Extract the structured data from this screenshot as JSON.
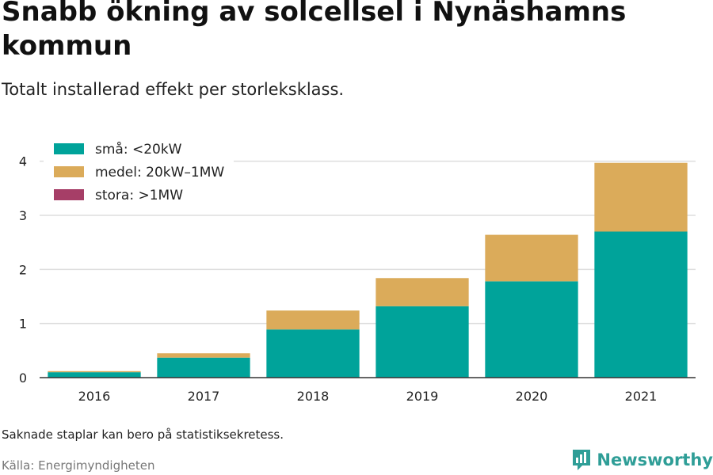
{
  "title": "Snabb ökning av solcellsel i Nynäshamns kommun",
  "subtitle": "Totalt installerad effekt per storleksklass.",
  "note": "Saknade staplar kan bero på statistiksekretess.",
  "source": "Källa: Energimyndigheten",
  "brand": "Newsworthy",
  "chart_data": {
    "type": "bar",
    "stacked": true,
    "categories": [
      "2016",
      "2017",
      "2018",
      "2019",
      "2020",
      "2021"
    ],
    "series": [
      {
        "name": "små: <20kW",
        "color": "#00a39a",
        "values": [
          0.1,
          0.37,
          0.89,
          1.32,
          1.78,
          2.7
        ]
      },
      {
        "name": "medel: 20kW–1MW",
        "color": "#dbab5a",
        "values": [
          0.02,
          0.08,
          0.35,
          0.52,
          0.86,
          1.27
        ]
      },
      {
        "name": "stora: >1MW",
        "color": "#a63e67",
        "values": [
          0,
          0,
          0,
          0,
          0,
          0
        ]
      }
    ],
    "ylim": [
      0,
      4.2
    ],
    "yticks": [
      0,
      1,
      2,
      3,
      4
    ],
    "grid": true,
    "legend": "top-left"
  }
}
